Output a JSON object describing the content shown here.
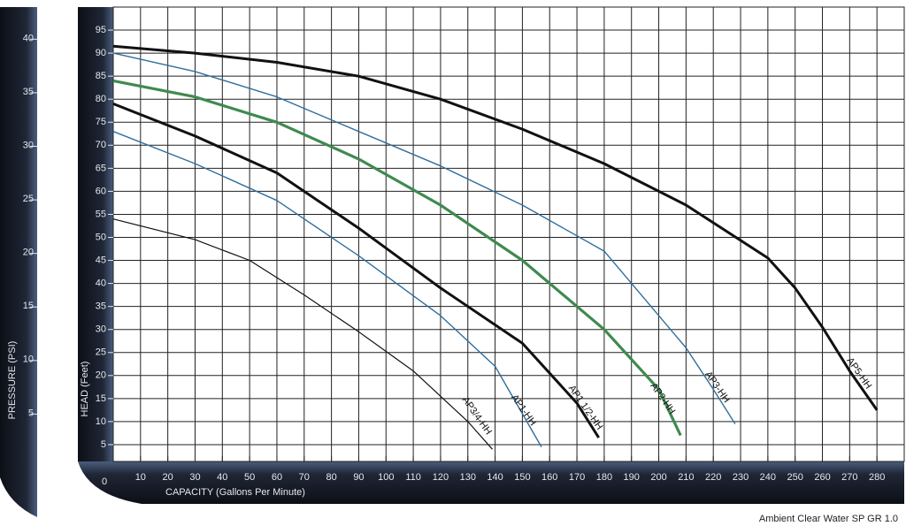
{
  "chart_data": {
    "type": "line",
    "x_label": "CAPACITY (Gallons Per Minute)",
    "y_label": "HEAD (Feet)",
    "y2_label": "PRESSURE (PSI)",
    "footnote": "Ambient Clear Water SP GR 1.0",
    "xlim": [
      0,
      290
    ],
    "xticks": [
      0,
      10,
      20,
      30,
      40,
      50,
      60,
      70,
      80,
      90,
      100,
      110,
      120,
      130,
      140,
      150,
      160,
      170,
      180,
      190,
      200,
      210,
      220,
      230,
      240,
      250,
      260,
      270,
      280
    ],
    "ylim": [
      0,
      100
    ],
    "yticks": [
      5,
      10,
      15,
      20,
      25,
      30,
      35,
      40,
      45,
      50,
      55,
      60,
      65,
      70,
      75,
      80,
      85,
      90,
      95
    ],
    "y2lim": [
      0,
      43
    ],
    "y2ticks": [
      5,
      10,
      15,
      20,
      25,
      30,
      35,
      40
    ],
    "grid": true,
    "series": [
      {
        "name": "AP3/4-HH",
        "color": "#111111",
        "line_width": 1.2,
        "x": [
          0,
          30,
          50,
          70,
          90,
          110,
          130,
          139
        ],
        "values": [
          54,
          49.5,
          45,
          37.5,
          29.5,
          21,
          10,
          4
        ]
      },
      {
        "name": "AP1-HH",
        "color": "#2f6f9f",
        "line_width": 1.4,
        "x": [
          0,
          30,
          60,
          90,
          120,
          140,
          157
        ],
        "values": [
          73,
          66,
          58,
          46,
          33,
          22,
          4.5
        ]
      },
      {
        "name": "AP1 1/2-HH",
        "color": "#111111",
        "line_width": 3,
        "x": [
          0,
          30,
          60,
          90,
          120,
          150,
          170,
          178
        ],
        "values": [
          79,
          72,
          64,
          52,
          39,
          27,
          14,
          6.5
        ]
      },
      {
        "name": "AP2-HH",
        "color": "#3f8a4f",
        "line_width": 3.2,
        "x": [
          0,
          30,
          60,
          90,
          120,
          150,
          180,
          200,
          208
        ],
        "values": [
          84,
          80.5,
          75,
          67,
          57,
          45,
          30,
          17,
          7
        ]
      },
      {
        "name": "AP3-HH",
        "color": "#2f6f9f",
        "line_width": 1.4,
        "x": [
          0,
          30,
          60,
          90,
          120,
          150,
          180,
          210,
          220,
          228
        ],
        "values": [
          90,
          86,
          80.5,
          73,
          65.5,
          57,
          47,
          26,
          17,
          9.5
        ]
      },
      {
        "name": "AP5-HH",
        "color": "#111111",
        "line_width": 3,
        "x": [
          0,
          30,
          60,
          90,
          120,
          150,
          180,
          210,
          240,
          250,
          260,
          270,
          280
        ],
        "values": [
          91.5,
          90,
          88,
          85,
          80,
          73.5,
          66,
          57,
          45.5,
          39,
          30.5,
          21,
          12.5
        ]
      }
    ]
  }
}
